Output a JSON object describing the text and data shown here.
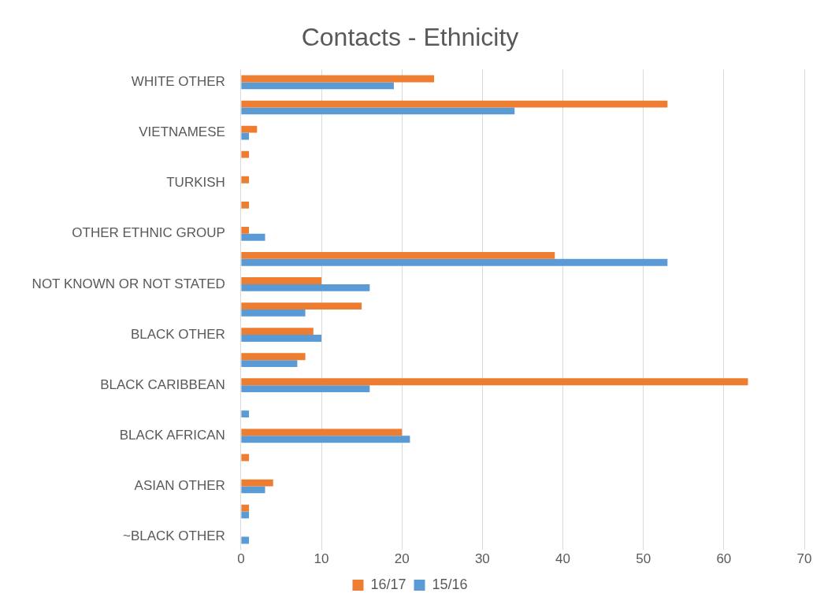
{
  "chart_data": {
    "type": "bar",
    "orientation": "horizontal",
    "title": "Contacts - Ethnicity",
    "categories": [
      "WHITE OTHER",
      null,
      "VIETNAMESE",
      null,
      "TURKISH",
      null,
      "OTHER ETHNIC GROUP",
      null,
      "NOT KNOWN OR NOT STATED",
      null,
      "BLACK OTHER",
      null,
      "BLACK CARIBBEAN",
      null,
      "BLACK AFRICAN",
      null,
      "ASIAN OTHER",
      null,
      "~BLACK OTHER"
    ],
    "series": [
      {
        "name": "16/17",
        "color": "#ed7d31",
        "values": [
          24,
          53,
          2,
          1,
          1,
          1,
          1,
          39,
          10,
          15,
          9,
          8,
          63,
          0,
          20,
          1,
          4,
          1,
          0
        ]
      },
      {
        "name": "15/16",
        "color": "#5b9bd5",
        "values": [
          19,
          34,
          1,
          0,
          0,
          0,
          3,
          53,
          16,
          8,
          10,
          7,
          16,
          1,
          21,
          0,
          3,
          1,
          1
        ]
      }
    ],
    "xlim": [
      0,
      70
    ],
    "xticks": [
      0,
      10,
      20,
      30,
      40,
      50,
      60,
      70
    ],
    "grid": "x",
    "legend": "bottom"
  }
}
